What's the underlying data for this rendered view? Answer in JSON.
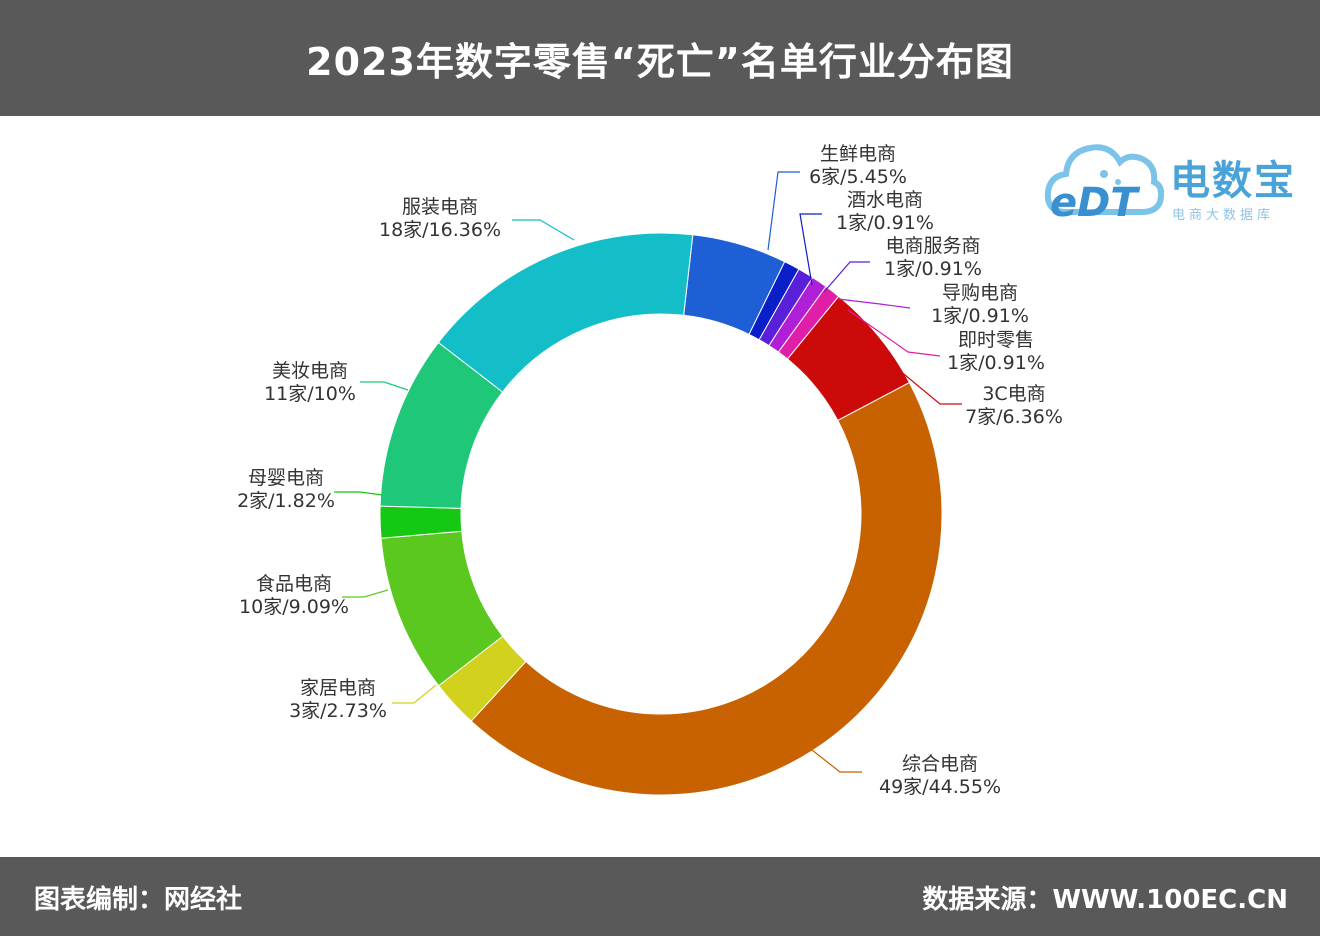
{
  "header": {
    "title": "2023年数字零售“死亡”名单行业分布图"
  },
  "footer": {
    "left": "图表编制：网经社",
    "right": "数据来源：WWW.100EC.CN"
  },
  "logo": {
    "mark_text": "eDT",
    "name": "电数宝",
    "subtitle": "电商大数据库"
  },
  "colors": {
    "header_bg": "#595959",
    "leader_line": "#777777"
  },
  "chart_data": {
    "type": "pie",
    "variant": "donut",
    "title": "2023年数字零售“死亡”名单行业分布图",
    "legend": "none",
    "slices": [
      {
        "name": "生鲜电商",
        "count": 6,
        "value": 5.45,
        "label": "6家/5.45%",
        "color": "#1f5fd6"
      },
      {
        "name": "酒水电商",
        "count": 1,
        "value": 0.91,
        "label": "1家/0.91%",
        "color": "#0a1fc8"
      },
      {
        "name": "电商服务商",
        "count": 1,
        "value": 0.91,
        "label": "1家/0.91%",
        "color": "#5a1fd8"
      },
      {
        "name": "导购电商",
        "count": 1,
        "value": 0.91,
        "label": "1家/0.91%",
        "color": "#b01fd8"
      },
      {
        "name": "即时零售",
        "count": 1,
        "value": 0.91,
        "label": "1家/0.91%",
        "color": "#e01fa8"
      },
      {
        "name": "3C电商",
        "count": 7,
        "value": 6.36,
        "label": "7家/6.36%",
        "color": "#cc0a0a"
      },
      {
        "name": "综合电商",
        "count": 49,
        "value": 44.55,
        "label": "49家/44.55%",
        "color": "#c86200"
      },
      {
        "name": "家居电商",
        "count": 3,
        "value": 2.73,
        "label": "3家/2.73%",
        "color": "#d2d21e"
      },
      {
        "name": "食品电商",
        "count": 10,
        "value": 9.09,
        "label": "10家/9.09%",
        "color": "#5ac81e"
      },
      {
        "name": "母婴电商",
        "count": 2,
        "value": 1.82,
        "label": "2家/1.82%",
        "color": "#14c814"
      },
      {
        "name": "美妆电商",
        "count": 11,
        "value": 10,
        "label": "11家/10%",
        "color": "#1ec878"
      },
      {
        "name": "服装电商",
        "count": 18,
        "value": 16.36,
        "label": "18家/16.36%",
        "color": "#14bec8"
      }
    ]
  }
}
